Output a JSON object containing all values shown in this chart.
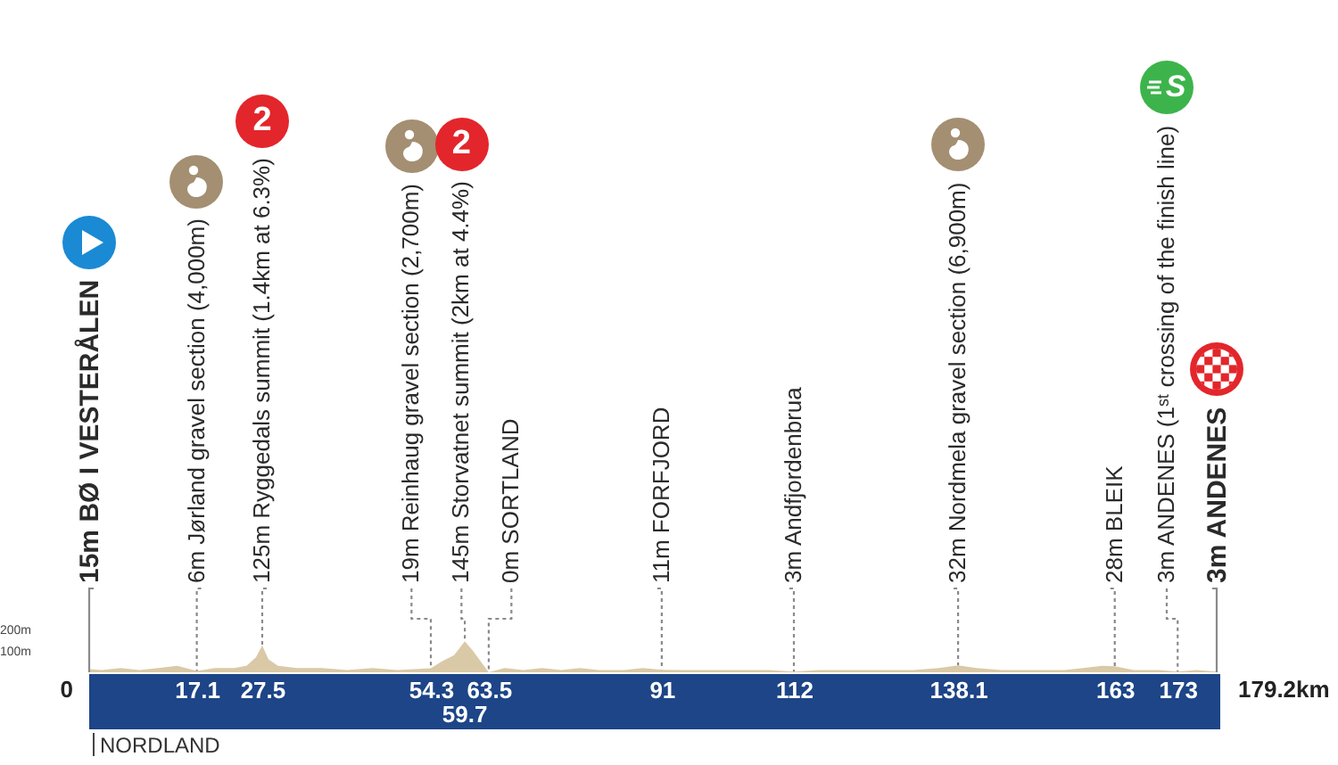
{
  "chart_data": {
    "type": "area",
    "color": "#dac9a6",
    "x": [
      0,
      2,
      5,
      8,
      11,
      14,
      17.1,
      20,
      23,
      25,
      26.5,
      27.5,
      28.5,
      30,
      33,
      37,
      41,
      45,
      49,
      54.3,
      56,
      58,
      59.7,
      61,
      62.5,
      63.5,
      66,
      69,
      72,
      75,
      78,
      81,
      85,
      88,
      91,
      95,
      100,
      105,
      108,
      112,
      116,
      120,
      124,
      128,
      131,
      135,
      138.1,
      141,
      145,
      150,
      155,
      158,
      161,
      163,
      166,
      170,
      173,
      176,
      179.2
    ],
    "values": [
      15,
      10,
      20,
      10,
      20,
      30,
      6,
      20,
      20,
      30,
      70,
      125,
      60,
      30,
      20,
      20,
      10,
      20,
      10,
      19,
      50,
      80,
      145,
      100,
      40,
      0,
      20,
      10,
      20,
      10,
      20,
      10,
      10,
      20,
      11,
      10,
      10,
      10,
      10,
      3,
      10,
      10,
      10,
      10,
      10,
      20,
      32,
      20,
      10,
      10,
      10,
      20,
      30,
      28,
      10,
      10,
      3,
      10,
      3
    ],
    "xlim": [
      0,
      179.2
    ],
    "ylim": [
      0,
      200
    ],
    "xticks": [
      17.1,
      27.5,
      54.3,
      {
        "value": 59.7,
        "label": null
      },
      63.5,
      91,
      112,
      138.1,
      163,
      173
    ],
    "yticks": [
      {
        "value": 100,
        "label": "100m"
      },
      {
        "value": 200,
        "label": "200m"
      }
    ],
    "annotations": [
      {
        "text": "6m Jørland gravel section (4,000m)",
        "x": 17.1,
        "y": 6
      },
      {
        "text": "125m Ryggedals summit (1.4km at 6.3%)",
        "x": 27.5,
        "y": 125
      },
      {
        "text": "19m Reinhaug gravel section (2,700m)",
        "x": 54.3,
        "y": 19
      },
      {
        "text": "145m Storvatnet summit (2km at 4.4%)",
        "x": 59.7,
        "y": 145
      },
      {
        "text": "0m SORTLAND",
        "x": 63.5,
        "y": 0
      },
      {
        "text": "11m FORFJORD",
        "x": 91,
        "y": 11
      },
      {
        "text": "3m Andfjordenbrua",
        "x": 112,
        "y": 3
      },
      {
        "text": "32m Nordmela gravel section (6,900m)",
        "x": 138.1,
        "y": 32
      },
      {
        "text": "28m BLEIK",
        "x": 163,
        "y": 28
      },
      {
        "text": "3m ANDENES (1ˢᵗ crossing of the finish line)",
        "x": 173,
        "y": 3
      },
      "15m BØ I VESTERÅLEN",
      "3m ANDENES",
      "2",
      "2",
      "S",
      "0",
      "179.2km",
      "NORDLAND",
      "59.7"
    ]
  }
}
